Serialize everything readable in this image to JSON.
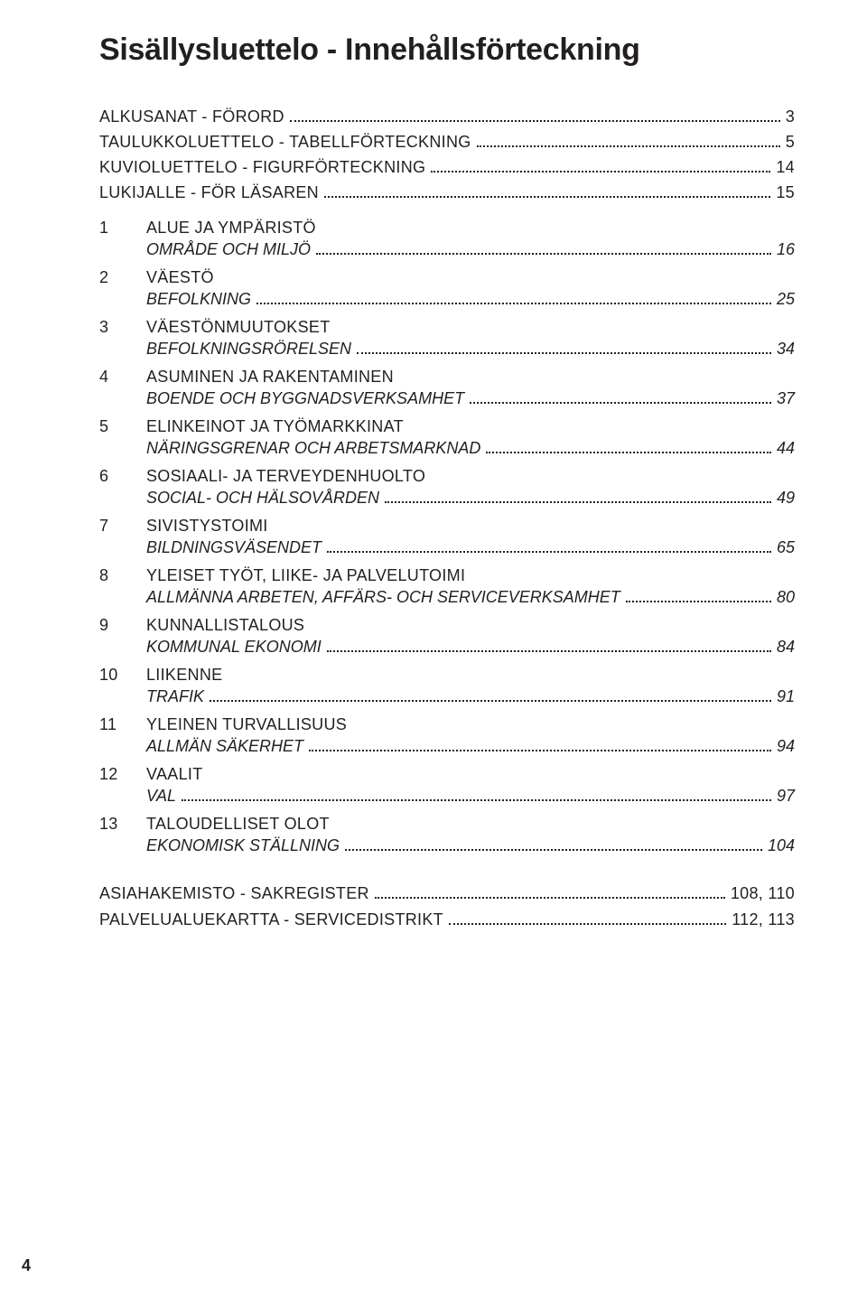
{
  "title": "Sisällysluettelo - Innehållsförteckning",
  "front": [
    {
      "label": "ALKUSANAT - FÖRORD",
      "page": "3"
    },
    {
      "label": "TAULUKKOLUETTELO - TABELLFÖRTECKNING",
      "page": "5"
    },
    {
      "label": "KUVIOLUETTELO - FIGURFÖRTECKNING",
      "page": "14"
    },
    {
      "label": "LUKIJALLE - FÖR LÄSAREN",
      "page": "15"
    }
  ],
  "chapters": [
    {
      "num": "1",
      "fi": "ALUE JA YMPÄRISTÖ",
      "sv": "OMRÅDE OCH MILJÖ",
      "page": "16"
    },
    {
      "num": "2",
      "fi": "VÄESTÖ",
      "sv": "BEFOLKNING",
      "page": "25"
    },
    {
      "num": "3",
      "fi": "VÄESTÖNMUUTOKSET",
      "sv": "BEFOLKNINGSRÖRELSEN",
      "page": "34"
    },
    {
      "num": "4",
      "fi": "ASUMINEN JA RAKENTAMINEN",
      "sv": "BOENDE OCH BYGGNADSVERKSAMHET",
      "page": "37"
    },
    {
      "num": "5",
      "fi": "ELINKEINOT JA TYÖMARKKINAT",
      "sv": "NÄRINGSGRENAR OCH ARBETSMARKNAD",
      "page": "44"
    },
    {
      "num": "6",
      "fi": "SOSIAALI- JA TERVEYDENHUOLTO",
      "sv": "SOCIAL- OCH HÄLSOVÅRDEN",
      "page": "49"
    },
    {
      "num": "7",
      "fi": "SIVISTYSTOIMI",
      "sv": "BILDNINGSVÄSENDET",
      "page": "65"
    },
    {
      "num": "8",
      "fi": "YLEISET TYÖT, LIIKE- JA PALVELUTOIMI",
      "sv": "ALLMÄNNA ARBETEN, AFFÄRS- OCH SERVICEVERKSAMHET",
      "page": "80"
    },
    {
      "num": "9",
      "fi": "KUNNALLISTALOUS",
      "sv": "KOMMUNAL EKONOMI",
      "page": "84"
    },
    {
      "num": "10",
      "fi": "LIIKENNE",
      "sv": "TRAFIK",
      "page": "91"
    },
    {
      "num": "11",
      "fi": "YLEINEN TURVALLISUUS",
      "sv": "ALLMÄN SÄKERHET",
      "page": "94"
    },
    {
      "num": "12",
      "fi": "VAALIT",
      "sv": "VAL",
      "page": "97"
    },
    {
      "num": "13",
      "fi": "TALOUDELLISET OLOT",
      "sv": "EKONOMISK STÄLLNING",
      "page": "104"
    }
  ],
  "bottom": [
    {
      "label": "ASIAHAKEMISTO - SAKREGISTER",
      "page": "108, 110"
    },
    {
      "label": "PALVELUALUEKARTTA - SERVICEDISTRIKT",
      "page": "112, 113"
    }
  ],
  "pageNumber": "4"
}
